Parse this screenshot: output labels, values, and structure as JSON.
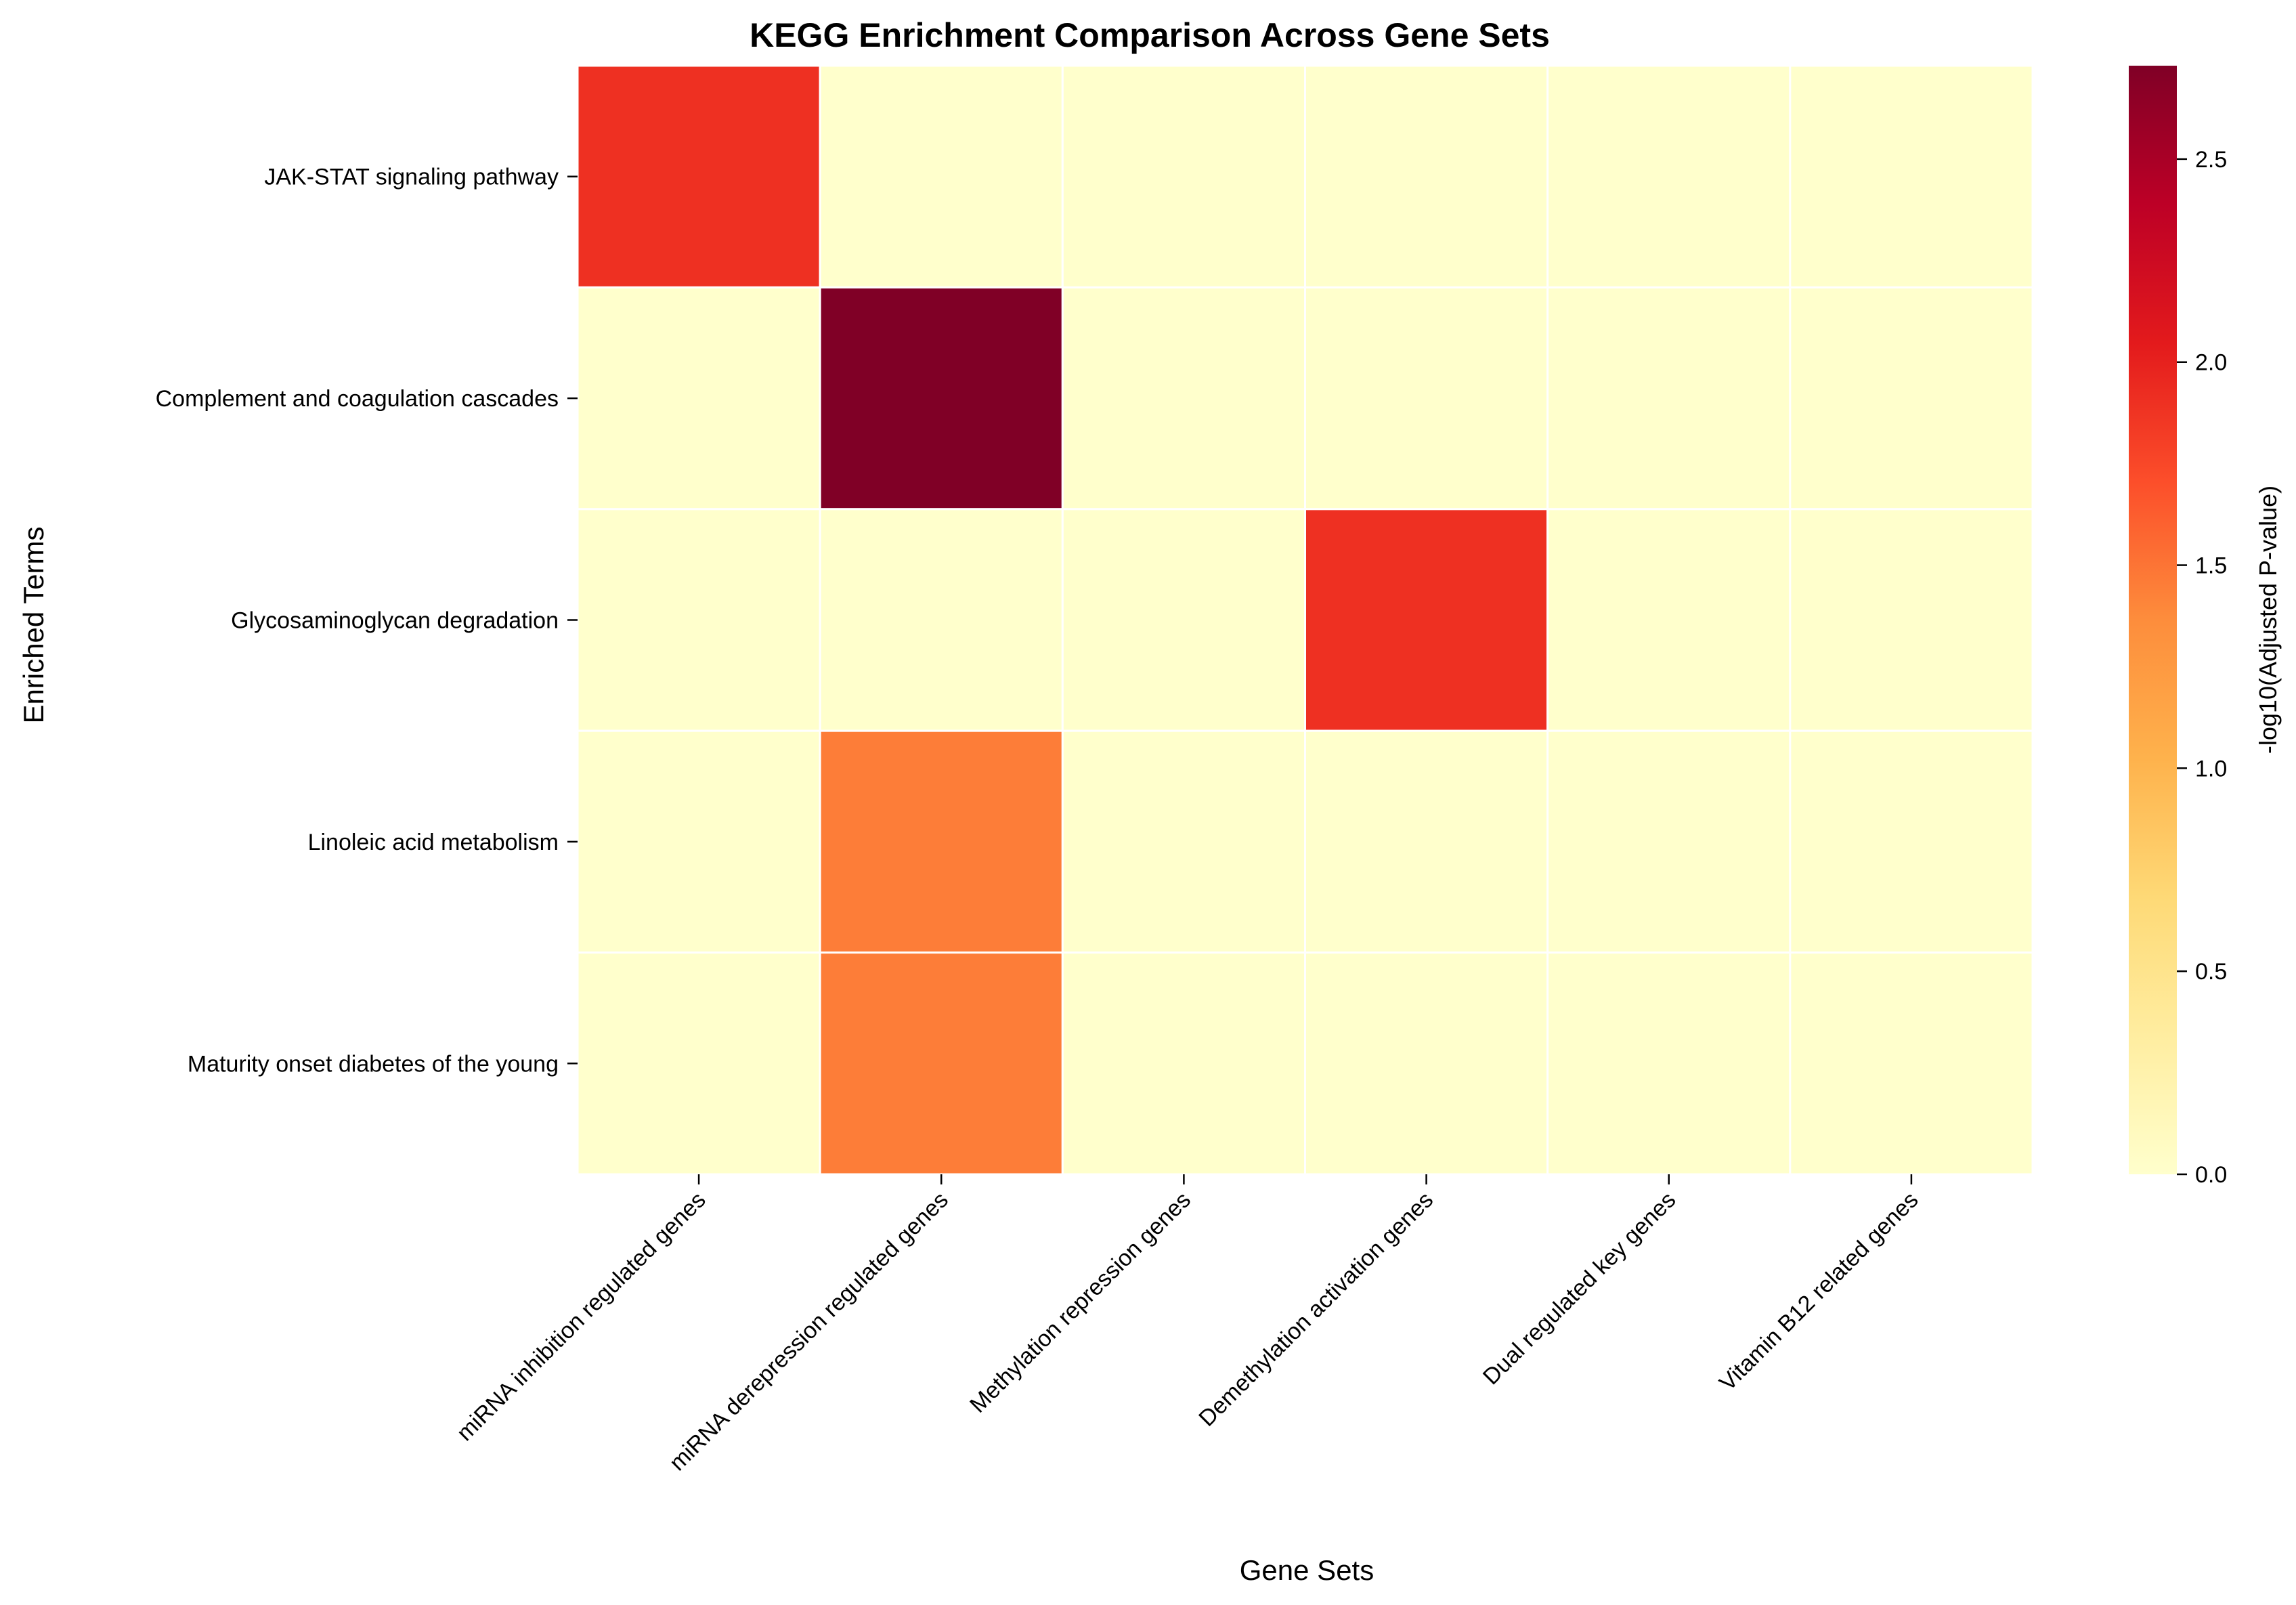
{
  "chart_data": {
    "type": "heatmap",
    "title": "KEGG Enrichment Comparison Across Gene Sets",
    "xlabel": "Gene Sets",
    "ylabel": "Enriched Terms",
    "x_categories": [
      "miRNA inhibition regulated genes",
      "miRNA derepression regulated genes",
      "Methylation repression genes",
      "Demethylation activation genes",
      "Dual regulated key genes",
      "Vitamin B12 related genes"
    ],
    "y_categories": [
      "JAK-STAT signaling pathway",
      "Complement and coagulation cascades",
      "Glycosaminoglycan degradation",
      "Linoleic acid metabolism",
      "Maturity onset diabetes of the young"
    ],
    "values": [
      [
        1.9,
        0,
        0,
        0,
        0,
        0
      ],
      [
        0,
        2.73,
        0,
        0,
        0,
        0
      ],
      [
        0,
        0,
        0,
        1.9,
        0,
        0
      ],
      [
        0,
        1.45,
        0,
        0,
        0,
        0
      ],
      [
        0,
        1.45,
        0,
        0,
        0,
        0
      ]
    ],
    "colorbar": {
      "label": "-log10(Adjusted P-value)",
      "range": [
        0,
        2.73
      ],
      "ticks": [
        "0.0",
        "0.5",
        "1.0",
        "1.5",
        "2.0",
        "2.5"
      ],
      "colormap": "YlOrRd"
    }
  }
}
